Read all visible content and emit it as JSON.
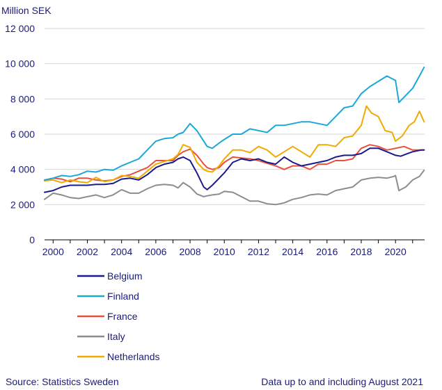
{
  "chart_data": {
    "type": "line",
    "ylabel": "Million SEK",
    "ylim": [
      0,
      12000
    ],
    "yticks": [
      0,
      2000,
      4000,
      6000,
      8000,
      10000,
      12000
    ],
    "ytick_labels": [
      "0",
      "2 000",
      "4 000",
      "6 000",
      "8 000",
      "10 000",
      "12 000"
    ],
    "xlim": [
      1999.5,
      2021.7
    ],
    "xticks": [
      2000,
      2002,
      2004,
      2006,
      2008,
      2010,
      2012,
      2014,
      2016,
      2018,
      2020
    ],
    "xtick_labels": [
      "2000",
      "2002",
      "2004",
      "2006",
      "2008",
      "2010",
      "2012",
      "2014",
      "2016",
      "2018",
      "2020"
    ],
    "grid": "horizontal",
    "legend_position": "bottom-left",
    "series": [
      {
        "name": "Belgium",
        "color": "#1a1a8c",
        "x": [
          1999.5,
          2000,
          2000.5,
          2001,
          2001.5,
          2002,
          2002.5,
          2003,
          2003.5,
          2004,
          2004.5,
          2005,
          2005.5,
          2006,
          2006.5,
          2007,
          2007.3,
          2007.6,
          2008,
          2008.4,
          2008.8,
          2009,
          2009.3,
          2009.7,
          2010,
          2010.5,
          2011,
          2011.5,
          2012,
          2012.5,
          2013,
          2013.5,
          2014,
          2014.5,
          2015,
          2015.5,
          2016,
          2016.5,
          2017,
          2017.5,
          2018,
          2018.5,
          2019,
          2019.5,
          2020,
          2020.3,
          2020.7,
          2021,
          2021.5,
          2021.67
        ],
        "values": [
          2700,
          2800,
          3000,
          3100,
          3100,
          3100,
          3150,
          3150,
          3200,
          3450,
          3500,
          3400,
          3700,
          4100,
          4300,
          4400,
          4600,
          4700,
          4500,
          3800,
          3000,
          2850,
          3100,
          3500,
          3800,
          4400,
          4600,
          4500,
          4600,
          4400,
          4300,
          4700,
          4400,
          4200,
          4300,
          4400,
          4500,
          4700,
          4800,
          4800,
          4900,
          5200,
          5200,
          5000,
          4800,
          4750,
          4900,
          5000,
          5100,
          5100
        ]
      },
      {
        "name": "Finland",
        "color": "#1aa8d8",
        "x": [
          1999.5,
          2000,
          2000.5,
          2001,
          2001.5,
          2002,
          2002.5,
          2003,
          2003.5,
          2004,
          2004.5,
          2005,
          2005.5,
          2006,
          2006.5,
          2007,
          2007.3,
          2007.6,
          2008,
          2008.4,
          2008.8,
          2009,
          2009.3,
          2009.7,
          2010,
          2010.5,
          2011,
          2011.5,
          2012,
          2012.5,
          2013,
          2013.5,
          2014,
          2014.5,
          2015,
          2015.5,
          2016,
          2016.5,
          2017,
          2017.5,
          2018,
          2018.5,
          2019,
          2019.5,
          2019.9,
          2020.0,
          2020.2,
          2020.6,
          2021,
          2021.4,
          2021.67
        ],
        "values": [
          3400,
          3500,
          3650,
          3600,
          3700,
          3900,
          3850,
          4000,
          3950,
          4200,
          4400,
          4600,
          5100,
          5600,
          5750,
          5800,
          6000,
          6100,
          6600,
          6200,
          5600,
          5300,
          5200,
          5500,
          5700,
          6000,
          6000,
          6300,
          6200,
          6100,
          6500,
          6500,
          6600,
          6700,
          6700,
          6600,
          6500,
          7000,
          7500,
          7600,
          8300,
          8700,
          9000,
          9300,
          9100,
          9050,
          7800,
          8200,
          8600,
          9300,
          9800
        ]
      },
      {
        "name": "France",
        "color": "#e8503c",
        "x": [
          1999.5,
          2000,
          2000.5,
          2001,
          2001.5,
          2002,
          2002.5,
          2003,
          2003.5,
          2004,
          2004.5,
          2005,
          2005.5,
          2006,
          2006.5,
          2007,
          2007.3,
          2007.6,
          2008,
          2008.4,
          2008.8,
          2009,
          2009.3,
          2009.7,
          2010,
          2010.5,
          2011,
          2011.5,
          2012,
          2012.5,
          2013,
          2013.5,
          2014,
          2014.5,
          2015,
          2015.5,
          2016,
          2016.5,
          2017,
          2017.5,
          2018,
          2018.5,
          2019,
          2019.5,
          2020,
          2020.5,
          2021,
          2021.67
        ],
        "values": [
          3350,
          3500,
          3450,
          3300,
          3500,
          3500,
          3400,
          3350,
          3400,
          3600,
          3700,
          3900,
          4100,
          4500,
          4500,
          4500,
          4800,
          5000,
          5150,
          4800,
          4300,
          4100,
          4000,
          4100,
          4400,
          4700,
          4650,
          4600,
          4500,
          4350,
          4200,
          4000,
          4200,
          4200,
          4000,
          4300,
          4300,
          4500,
          4500,
          4600,
          5200,
          5400,
          5300,
          5100,
          5200,
          5300,
          5100,
          5100
        ]
      },
      {
        "name": "Italy",
        "color": "#8c8c8c",
        "x": [
          1999.5,
          2000,
          2000.5,
          2001,
          2001.5,
          2002,
          2002.5,
          2003,
          2003.5,
          2004,
          2004.5,
          2005,
          2005.5,
          2006,
          2006.5,
          2007,
          2007.3,
          2007.6,
          2008,
          2008.4,
          2008.8,
          2009,
          2009.3,
          2009.7,
          2010,
          2010.5,
          2011,
          2011.5,
          2012,
          2012.5,
          2013,
          2013.5,
          2014,
          2014.5,
          2015,
          2015.5,
          2016,
          2016.5,
          2017,
          2017.5,
          2018,
          2018.5,
          2019,
          2019.5,
          2019.9,
          2020.0,
          2020.2,
          2020.6,
          2021,
          2021.4,
          2021.67
        ],
        "values": [
          2300,
          2650,
          2550,
          2400,
          2350,
          2450,
          2550,
          2400,
          2550,
          2850,
          2650,
          2650,
          2900,
          3100,
          3150,
          3100,
          2950,
          3250,
          3000,
          2600,
          2450,
          2500,
          2550,
          2600,
          2750,
          2700,
          2450,
          2200,
          2200,
          2050,
          2000,
          2100,
          2300,
          2400,
          2550,
          2600,
          2550,
          2800,
          2900,
          3000,
          3400,
          3500,
          3550,
          3500,
          3600,
          3650,
          2800,
          3000,
          3400,
          3600,
          3950
        ]
      },
      {
        "name": "Netherlands",
        "color": "#f0aa00",
        "x": [
          1999.5,
          2000,
          2000.5,
          2001,
          2001.5,
          2002,
          2002.5,
          2003,
          2003.5,
          2004,
          2004.5,
          2005,
          2005.5,
          2006,
          2006.5,
          2007,
          2007.3,
          2007.6,
          2008,
          2008.4,
          2008.8,
          2009,
          2009.3,
          2009.7,
          2010,
          2010.5,
          2011,
          2011.5,
          2012,
          2012.5,
          2013,
          2013.5,
          2014,
          2014.5,
          2015,
          2015.5,
          2016,
          2016.5,
          2017,
          2017.5,
          2018,
          2018.3,
          2018.6,
          2019,
          2019.4,
          2019.8,
          2020.0,
          2020.4,
          2020.8,
          2021.1,
          2021.4,
          2021.67
        ],
        "values": [
          3350,
          3400,
          3250,
          3400,
          3300,
          3250,
          3550,
          3300,
          3400,
          3650,
          3600,
          3500,
          3900,
          4300,
          4450,
          4600,
          4850,
          5400,
          5250,
          4400,
          4000,
          3900,
          3850,
          4200,
          4600,
          5100,
          5100,
          4950,
          5300,
          5100,
          4700,
          5000,
          5300,
          5000,
          4700,
          5400,
          5400,
          5300,
          5800,
          5900,
          6500,
          7600,
          7200,
          7000,
          6200,
          6100,
          5600,
          5900,
          6500,
          6700,
          7300,
          6700
        ]
      }
    ]
  },
  "footer": {
    "source": "Source: Statistics Sweden",
    "note": "Data up to and including August 2021"
  }
}
